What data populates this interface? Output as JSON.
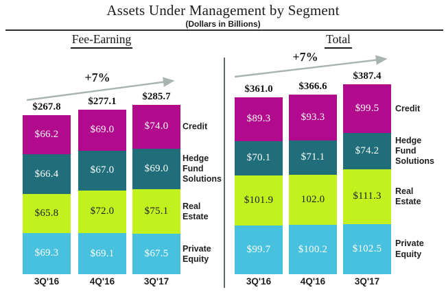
{
  "header": {
    "title": "Assets Under Management by Segment",
    "subtitle": "(Dollars in Billions)"
  },
  "colors": {
    "credit": "#B20A8C",
    "hedge_fund_solutions": "#1F6E79",
    "real_estate": "#C2F21E",
    "private_equity": "#48C1DF",
    "arrow": "#A9B3AF",
    "divider": "#5D6868"
  },
  "chart_data": [
    {
      "type": "bar",
      "stacked": true,
      "section": "Fee-Earning",
      "growth_label": "+7%",
      "categories": [
        "3Q'16",
        "4Q'16",
        "3Q'17"
      ],
      "totals": [
        267.8,
        277.1,
        285.7
      ],
      "total_labels": [
        "$267.8",
        "$277.1",
        "$285.7"
      ],
      "series": [
        {
          "name": "Credit",
          "color": "#B20A8C",
          "text_color": "#FFFFFF",
          "values": [
            66.2,
            69.0,
            74.0
          ],
          "labels": [
            "$66.2",
            "$69.0",
            "$74.0"
          ]
        },
        {
          "name": "Hedge Fund Solutions",
          "color": "#1F6E79",
          "text_color": "#FFFFFF",
          "values": [
            66.4,
            67.0,
            69.0
          ],
          "labels": [
            "$66.4",
            "$67.0",
            "$69.0"
          ]
        },
        {
          "name": "Real Estate",
          "color": "#C2F21E",
          "text_color": "#1D1D1D",
          "values": [
            65.8,
            72.0,
            75.1
          ],
          "labels": [
            "$65.8",
            "$72.0",
            "$75.1"
          ]
        },
        {
          "name": "Private Equity",
          "color": "#48C1DF",
          "text_color": "#FFFFFF",
          "values": [
            69.3,
            69.1,
            67.5
          ],
          "labels": [
            "$69.3",
            "$69.1",
            "$67.5"
          ]
        }
      ],
      "legend_position": "right",
      "axes": "none",
      "gridlines": false
    },
    {
      "type": "bar",
      "stacked": true,
      "section": "Total",
      "growth_label": "+7%",
      "categories": [
        "3Q'16",
        "4Q'16",
        "3Q'17"
      ],
      "totals": [
        361.0,
        366.6,
        387.4
      ],
      "total_labels": [
        "$361.0",
        "$366.6",
        "$387.4"
      ],
      "series": [
        {
          "name": "Credit",
          "color": "#B20A8C",
          "text_color": "#FFFFFF",
          "values": [
            89.3,
            93.3,
            99.5
          ],
          "labels": [
            "$89.3",
            "$93.3",
            "$99.5"
          ]
        },
        {
          "name": "Hedge Fund Solutions",
          "color": "#1F6E79",
          "text_color": "#FFFFFF",
          "values": [
            70.1,
            71.1,
            74.2
          ],
          "labels": [
            "$70.1",
            "$71.1",
            "$74.2"
          ]
        },
        {
          "name": "Real Estate",
          "color": "#C2F21E",
          "text_color": "#1D1D1D",
          "values": [
            101.9,
            102.0,
            111.3
          ],
          "labels": [
            "$101.9",
            "102.0",
            "$111.3"
          ]
        },
        {
          "name": "Private Equity",
          "color": "#48C1DF",
          "text_color": "#FFFFFF",
          "values": [
            99.7,
            100.2,
            102.5
          ],
          "labels": [
            "$99.7",
            "$100.2",
            "$102.5"
          ]
        }
      ],
      "legend_position": "right",
      "axes": "none",
      "gridlines": false
    }
  ]
}
